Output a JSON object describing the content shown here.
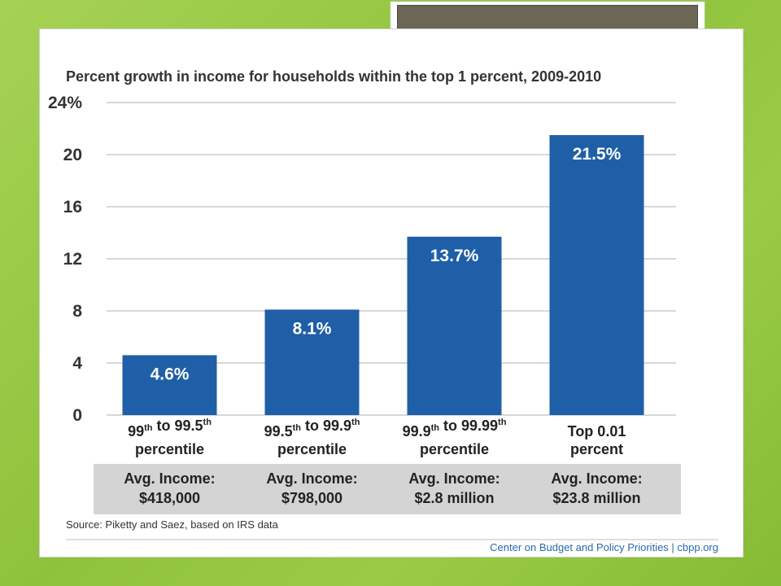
{
  "chart_data": {
    "type": "bar",
    "title": "Percent growth in income for households within the top 1 percent, 2009-2010",
    "y_ticks": [
      "0",
      "4",
      "8",
      "12",
      "16",
      "20",
      "24%"
    ],
    "ylim": [
      0,
      24
    ],
    "grid": true,
    "categories": [
      {
        "parts": [
          {
            "text": "99"
          },
          {
            "text": "th",
            "sup": true
          },
          {
            "text": " to 99.5"
          },
          {
            "text": "th",
            "sup": true
          }
        ],
        "line2": "percentile"
      },
      {
        "parts": [
          {
            "text": "99.5"
          },
          {
            "text": "th",
            "sup": true
          },
          {
            "text": " to 99.9"
          },
          {
            "text": "th",
            "sup": true
          }
        ],
        "line2": "percentile"
      },
      {
        "parts": [
          {
            "text": "99.9"
          },
          {
            "text": "th",
            "sup": true
          },
          {
            "text": " to 99.99"
          },
          {
            "text": "th",
            "sup": true
          }
        ],
        "line2": "percentile"
      },
      {
        "parts": [
          {
            "text": "Top 0.01"
          }
        ],
        "line2": "percent"
      }
    ],
    "values": [
      4.6,
      8.1,
      13.7,
      21.5
    ],
    "value_labels": [
      "4.6%",
      "8.1%",
      "13.7%",
      "21.5%"
    ],
    "avg_income_label": "Avg. Income:",
    "avg_incomes": [
      "$418,000",
      "$798,000",
      "$2.8 million",
      "$23.8 million"
    ],
    "source": "Source: Piketty and Saez, based on IRS data",
    "credit": "Center on Budget and Policy Priorities | cbpp.org",
    "colors": {
      "bar": "#1f5fa7",
      "grid": "#cccccc",
      "band": "#d4d4d4",
      "text": "#333333"
    }
  }
}
